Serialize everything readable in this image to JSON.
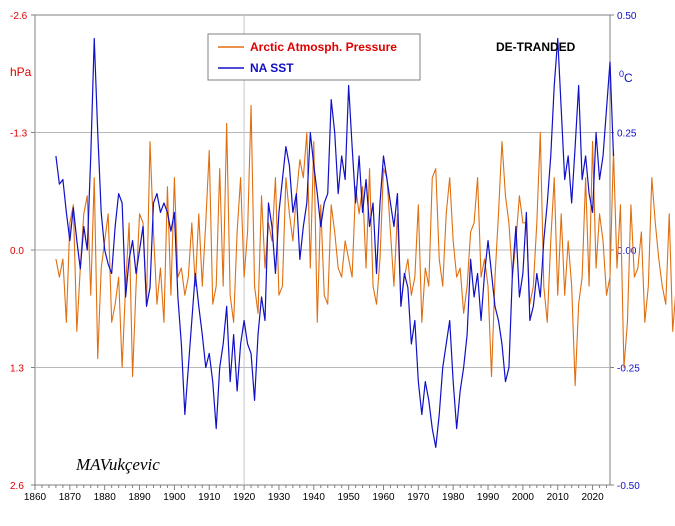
{
  "chart_data": {
    "type": "line",
    "title": "",
    "annotation": "DE-TRANDED",
    "signature": "MAVukçevic",
    "legend_position": "top-left",
    "x_axis": {
      "range": [
        1860,
        2025
      ],
      "ticks": [
        "1860",
        "1870",
        "1880",
        "1890",
        "1900",
        "1910",
        "1920",
        "1930",
        "1940",
        "1950",
        "1960",
        "1970",
        "1980",
        "1990",
        "2000",
        "2010",
        "2020"
      ]
    },
    "left_axis": {
      "label": "hPa",
      "inverted": true,
      "range": [
        -2.6,
        2.6
      ],
      "ticks": [
        {
          "value": -2.6,
          "label": "-2.6"
        },
        {
          "value": -1.3,
          "label": "-1.3"
        },
        {
          "value": 0.0,
          "label": "0.0"
        },
        {
          "value": 1.3,
          "label": "1.3"
        },
        {
          "value": 2.6,
          "label": "2.6"
        }
      ]
    },
    "right_axis": {
      "label_main": "0",
      "label_sub": "C",
      "range": [
        -0.5,
        0.5
      ],
      "ticks": [
        {
          "value": 0.5,
          "label": "0.50"
        },
        {
          "value": 0.25,
          "label": "0.25"
        },
        {
          "value": 0.0,
          "label": "0.00"
        },
        {
          "value": -0.25,
          "label": "-0.25"
        },
        {
          "value": -0.5,
          "label": "-0.50"
        }
      ]
    },
    "series": [
      {
        "name": "Arctic Atmosph. Pressure",
        "axis": "left",
        "color": "#e06f10",
        "x_start": 1866,
        "x_step": 1,
        "values": [
          0.1,
          0.3,
          0.1,
          0.8,
          -0.3,
          -0.5,
          0.9,
          0.2,
          -0.4,
          -0.6,
          0.5,
          -0.8,
          1.2,
          0.2,
          -0.1,
          -0.4,
          0.8,
          0.6,
          0.3,
          1.3,
          0.4,
          -0.3,
          1.4,
          0.4,
          -0.4,
          -0.3,
          0.6,
          -1.2,
          -0.2,
          0.6,
          0.2,
          0.8,
          -0.7,
          0.5,
          -0.8,
          0.3,
          0.2,
          0.5,
          0.3,
          -0.3,
          0.4,
          -0.4,
          0.4,
          -0.3,
          -1.1,
          0.6,
          0.4,
          -0.9,
          0.4,
          -1.4,
          0.5,
          0.8,
          -0.2,
          -0.8,
          0.3,
          -0.2,
          -1.6,
          0.4,
          0.7,
          -0.6,
          0.2,
          -0.3,
          -0.1,
          -0.8,
          0.5,
          0.4,
          -0.8,
          -0.4,
          -0.1,
          -0.6,
          -1.0,
          -0.8,
          -1.3,
          0.2,
          -1.2,
          0.8,
          -0.5,
          0.5,
          0.6,
          -0.5,
          -0.2,
          0.2,
          0.3,
          -0.1,
          0.1,
          0.3,
          -0.7,
          -0.4,
          -0.7,
          0.2,
          -0.9,
          0.4,
          0.6,
          0.1,
          -0.9,
          -0.8,
          -0.2,
          0.4,
          -0.4,
          0.6,
          0.3,
          0.1,
          0.5,
          0.3,
          -0.5,
          0.8,
          0.2,
          0.4,
          -0.8,
          -0.9,
          0.1,
          0.4,
          -0.4,
          -0.8,
          -0.1,
          0.3,
          0.2,
          0.7,
          0.4,
          -0.2,
          -0.3,
          -0.8,
          0.3,
          0.1,
          0.4,
          1.4,
          0.3,
          -0.4,
          -1.2,
          -0.6,
          -0.3,
          0.3,
          -0.1,
          -0.6,
          -0.3,
          -0.3,
          0.6,
          0.4,
          -0.3,
          -1.3,
          0.4,
          0.8,
          -0.1,
          -0.8,
          0.5,
          -0.4,
          0.5,
          -0.1,
          0.4,
          1.5,
          0.6,
          0.3,
          -0.8,
          0.4,
          -1.2,
          0.2,
          -0.4,
          -0.1,
          0.5,
          0.3,
          -1.1,
          0.2,
          -0.5,
          1.3,
          0.8,
          -0.5,
          0.3,
          0.2,
          -0.2,
          0.8,
          0.4,
          -0.8,
          -0.3,
          0.1,
          0.4,
          0.6,
          -0.4,
          0.9,
          0.4,
          -0.1,
          -0.5,
          -0.9,
          0.4,
          0.3,
          0.7,
          0.5,
          -0.8,
          -0.9,
          0.1,
          0.6,
          0.5,
          -0.2,
          0.2,
          -0.5,
          0.5,
          -0.2,
          0.4,
          0.2,
          0.3,
          0.5,
          0.1,
          -0.2,
          0.1,
          0.2,
          -0.1,
          -0.3,
          0.3,
          0.1,
          0.0,
          0.4,
          -0.2,
          -0.3,
          0.4,
          0.6,
          0.2,
          -0.1,
          -0.1,
          0.0,
          0.1,
          0.1
        ]
      },
      {
        "name": "NA SST",
        "axis": "right",
        "color": "#1010c8",
        "x_start": 1866,
        "x_step": 1,
        "values": [
          0.2,
          0.14,
          0.15,
          0.08,
          0.02,
          0.09,
          0.02,
          -0.04,
          0.05,
          0.0,
          0.2,
          0.45,
          0.25,
          0.08,
          0.0,
          -0.03,
          -0.05,
          0.05,
          0.12,
          0.1,
          -0.1,
          -0.02,
          0.02,
          -0.05,
          0.0,
          0.05,
          -0.12,
          -0.08,
          0.1,
          0.12,
          0.08,
          0.1,
          0.08,
          0.04,
          0.08,
          -0.1,
          -0.2,
          -0.35,
          -0.25,
          -0.15,
          -0.05,
          -0.12,
          -0.18,
          -0.25,
          -0.22,
          -0.28,
          -0.38,
          -0.25,
          -0.2,
          -0.12,
          -0.28,
          -0.18,
          -0.3,
          -0.2,
          -0.15,
          -0.2,
          -0.22,
          -0.32,
          -0.18,
          -0.1,
          -0.15,
          0.1,
          0.05,
          -0.05,
          0.08,
          0.15,
          0.22,
          0.18,
          0.08,
          0.12,
          -0.02,
          0.05,
          0.1,
          0.25,
          0.18,
          0.12,
          0.05,
          0.1,
          0.12,
          0.32,
          0.25,
          0.12,
          0.2,
          0.15,
          0.35,
          0.22,
          0.1,
          0.2,
          0.08,
          0.15,
          0.05,
          0.1,
          -0.05,
          0.1,
          0.2,
          0.15,
          0.1,
          0.05,
          0.12,
          -0.12,
          -0.05,
          -0.08,
          -0.2,
          -0.15,
          -0.28,
          -0.35,
          -0.28,
          -0.32,
          -0.38,
          -0.42,
          -0.35,
          -0.25,
          -0.2,
          -0.15,
          -0.28,
          -0.38,
          -0.3,
          -0.25,
          -0.18,
          -0.02,
          -0.1,
          -0.05,
          -0.15,
          -0.05,
          0.02,
          -0.05,
          -0.12,
          -0.15,
          -0.2,
          -0.28,
          -0.25,
          -0.05,
          0.05,
          -0.1,
          -0.05,
          0.08,
          -0.15,
          -0.12,
          -0.05,
          -0.1,
          0.02,
          0.1,
          0.2,
          0.35,
          0.45,
          0.3,
          0.15,
          0.2,
          0.1,
          0.22,
          0.35,
          0.15,
          0.2,
          0.12,
          0.08,
          0.25,
          0.15,
          0.2,
          0.3,
          0.4,
          0.2
        ]
      }
    ]
  }
}
